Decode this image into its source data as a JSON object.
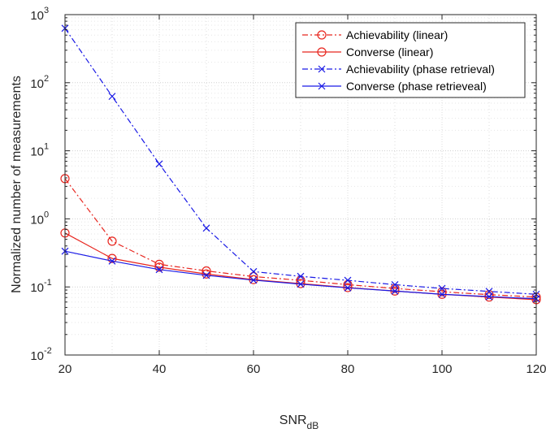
{
  "chart_data": {
    "type": "line",
    "title": "",
    "xlabel": "SNR",
    "xlabel_sub": "dB",
    "ylabel": "Normalized number of measurements",
    "xlim": [
      20,
      120
    ],
    "ylim": [
      0.01,
      1000
    ],
    "yscale": "log",
    "grid": true,
    "legend_position": "top-right",
    "x": [
      20,
      30,
      40,
      50,
      60,
      70,
      80,
      90,
      100,
      110,
      120
    ],
    "x_ticks": [
      "20",
      "40",
      "60",
      "80",
      "100",
      "120"
    ],
    "y_ticks": [
      {
        "base": "10",
        "exp": "-2"
      },
      {
        "base": "10",
        "exp": "-1"
      },
      {
        "base": "10",
        "exp": "0"
      },
      {
        "base": "10",
        "exp": "1"
      },
      {
        "base": "10",
        "exp": "2"
      },
      {
        "base": "10",
        "exp": "3"
      }
    ],
    "series": [
      {
        "name": "Achievability (linear)",
        "color": "#e8261f",
        "line": "dashdot",
        "marker": "circle",
        "values": [
          3.9,
          0.47,
          0.215,
          0.172,
          0.142,
          0.125,
          0.108,
          0.095,
          0.085,
          0.077,
          0.071
        ]
      },
      {
        "name": "Converse (linear)",
        "color": "#e8261f",
        "line": "solid",
        "marker": "circle",
        "values": [
          0.62,
          0.262,
          0.195,
          0.155,
          0.128,
          0.112,
          0.098,
          0.087,
          0.078,
          0.071,
          0.065
        ]
      },
      {
        "name": "Achievability (phase retrieval)",
        "color": "#1a1ae6",
        "line": "dashdot",
        "marker": "x",
        "values": [
          630,
          63,
          6.4,
          0.73,
          0.168,
          0.143,
          0.125,
          0.108,
          0.095,
          0.086,
          0.078
        ]
      },
      {
        "name": "Converse (phase retrieveal)",
        "color": "#1a1ae6",
        "line": "solid",
        "marker": "x",
        "values": [
          0.335,
          0.24,
          0.18,
          0.148,
          0.126,
          0.11,
          0.097,
          0.087,
          0.078,
          0.072,
          0.067
        ]
      }
    ]
  }
}
